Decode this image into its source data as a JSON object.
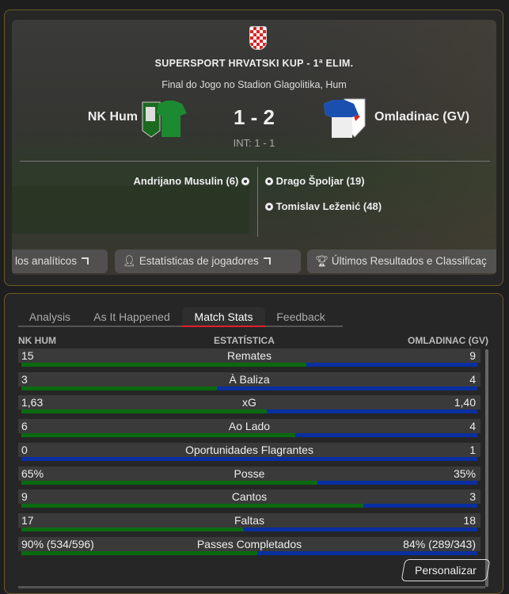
{
  "match": {
    "competition": "SUPERSPORT HRVATSKI KUP - 1ª ELIM.",
    "venue": "Final do Jogo no Stadion Glagolitika, Hum",
    "home_team": "NK Hum",
    "away_team": "Omladinac (GV)",
    "score": "1 - 2",
    "half_time": "INT: 1 - 1",
    "home_scorers": [
      "Andrijano Musulin (6)"
    ],
    "away_scorers": [
      "Drago Špoljar (19)",
      "Tomislav Leženić (48)"
    ]
  },
  "links": [
    {
      "label": "los analíticos",
      "icon": "external-link-icon"
    },
    {
      "label": "Estatísticas de jogadores",
      "icon": "person-icon"
    },
    {
      "label": "Últimos Resultados e Classificaç",
      "icon": "trophy-icon"
    }
  ],
  "tabs": [
    {
      "label": "Analysis"
    },
    {
      "label": "As It Happened"
    },
    {
      "label": "Match Stats",
      "active": true
    },
    {
      "label": "Feedback"
    }
  ],
  "stats_header": {
    "home": "NK HUM",
    "stat": "ESTATÍSTICA",
    "away": "OMLADINAC (GV)"
  },
  "stats": [
    {
      "home": "15",
      "label": "Remates",
      "away": "9",
      "share": 0.625
    },
    {
      "home": "3",
      "label": "À Baliza",
      "away": "4",
      "share": 0.4286
    },
    {
      "home": "1,63",
      "label": "xG",
      "away": "1,40",
      "share": 0.538
    },
    {
      "home": "6",
      "label": "Ao Lado",
      "away": "4",
      "share": 0.6
    },
    {
      "home": "0",
      "label": "Oportunidades Flagrantes",
      "away": "1",
      "share": 0
    },
    {
      "home": "65%",
      "label": "Posse",
      "away": "35%",
      "share": 0.65
    },
    {
      "home": "9",
      "label": "Cantos",
      "away": "3",
      "share": 0.75
    },
    {
      "home": "17",
      "label": "Faltas",
      "away": "18",
      "share": 0.486
    },
    {
      "home": "90% (534/596)",
      "label": "Passes Completados",
      "away": "84% (289/343)",
      "share": 0.517
    }
  ],
  "customize_label": "Personalizar",
  "colors": {
    "home": "#0a6a10",
    "away": "#0a2fa0",
    "active_tab": "#e02030",
    "border": "#6b5a2a"
  }
}
